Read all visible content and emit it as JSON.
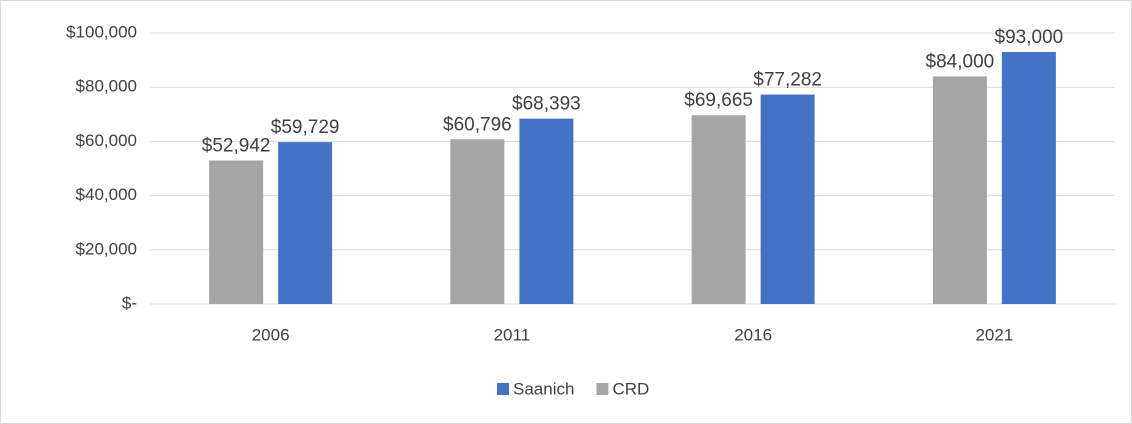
{
  "chart_data": {
    "type": "bar",
    "categories": [
      "2006",
      "2011",
      "2016",
      "2021"
    ],
    "series": [
      {
        "name": "CRD",
        "color": "#a5a5a5",
        "values": [
          52942,
          60796,
          69665,
          84000
        ],
        "value_labels": [
          "$52,942",
          "$60,796",
          "$69,665",
          "$84,000"
        ]
      },
      {
        "name": "Saanich",
        "color": "#4472c4",
        "values": [
          59729,
          68393,
          77282,
          93000
        ],
        "value_labels": [
          "$59,729",
          "$68,393",
          "$77,282",
          "$93,000"
        ]
      }
    ],
    "ylim": [
      0,
      100000
    ],
    "yticks": [
      {
        "value": 0,
        "label": "$-"
      },
      {
        "value": 20000,
        "label": "$20,000"
      },
      {
        "value": 40000,
        "label": "$40,000"
      },
      {
        "value": 60000,
        "label": "$60,000"
      },
      {
        "value": 80000,
        "label": "$80,000"
      },
      {
        "value": 100000,
        "label": "$100,000"
      }
    ],
    "grid": true,
    "legend": "bottom"
  }
}
